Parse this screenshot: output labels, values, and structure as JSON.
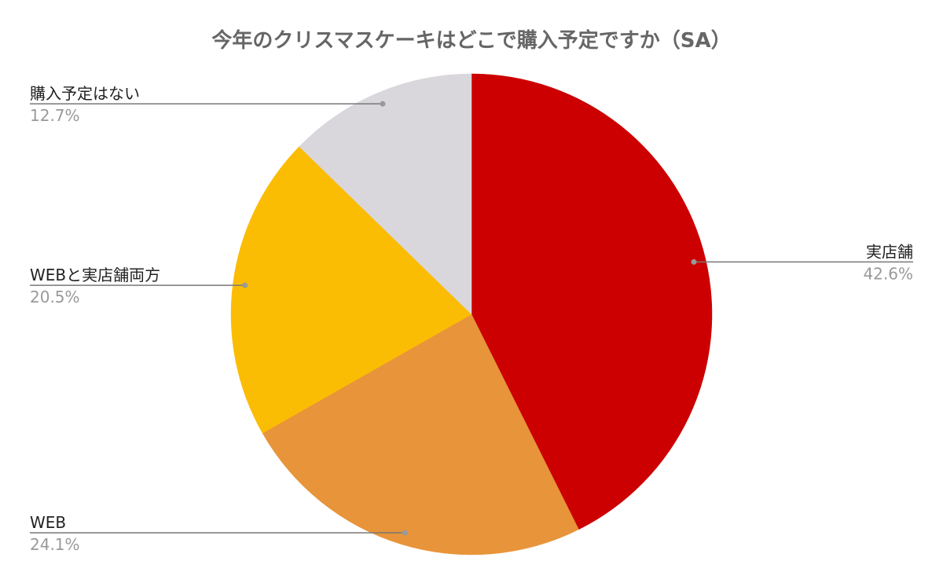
{
  "chart_data": {
    "type": "pie",
    "title": "今年のクリスマスケーキはどこで購入予定ですか（SA）",
    "categories": [
      "実店舗",
      "WEB",
      "WEBと実店舗両方",
      "購入予定はない"
    ],
    "values": [
      42.6,
      24.1,
      20.5,
      12.7
    ],
    "value_labels": [
      "42.6%",
      "24.1%",
      "20.5%",
      "12.7%"
    ],
    "colors": [
      "#cc0000",
      "#e8943a",
      "#fbbc04",
      "#d9d7db"
    ]
  }
}
